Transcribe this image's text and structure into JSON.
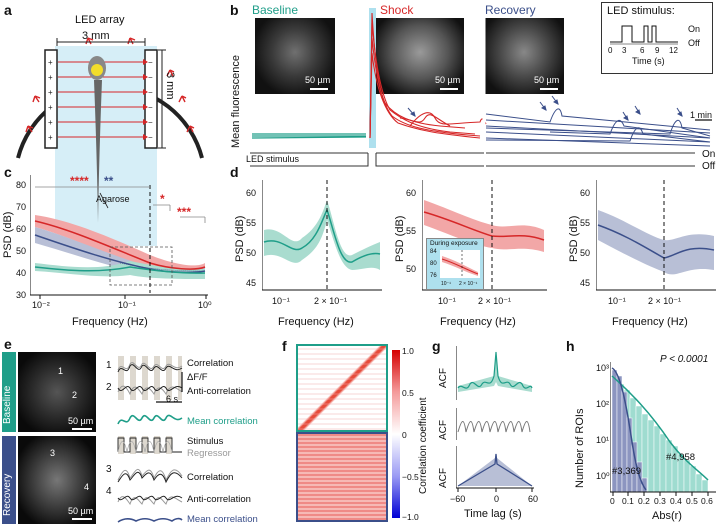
{
  "panels": {
    "a": {
      "label": "a",
      "led_array": "LED array",
      "width": "3 mm",
      "height": "3 mm",
      "agarose": "Agarose"
    },
    "b": {
      "label": "b",
      "phases": [
        {
          "name": "Baseline",
          "color": "#1f9e89"
        },
        {
          "name": "Shock",
          "color": "#d62728"
        },
        {
          "name": "Recovery",
          "color": "#3b4f8a"
        }
      ],
      "scalebar": "50 µm",
      "ylabel": "Mean fluorescence",
      "time_scale": "1 min",
      "led_stim_label": "LED stimulus",
      "on": "On",
      "off": "Off",
      "inset": {
        "title": "LED stimulus:",
        "on": "On",
        "off": "Off",
        "ticks": [
          "0",
          "3",
          "6",
          "9",
          "12"
        ],
        "xlabel": "Time (s)"
      }
    },
    "c": {
      "label": "c",
      "ylabel": "PSD (dB)",
      "xlabel": "Frequency (Hz)",
      "yticks": [
        "30",
        "40",
        "50",
        "60",
        "70",
        "80"
      ],
      "xticks": [
        "10⁻²",
        "10⁻¹",
        "10⁰"
      ],
      "sig_red": "****",
      "sig_blue": "**",
      "sig_star": "*",
      "sig_triple": "***"
    },
    "d": {
      "label": "d",
      "ylabel": "PSD (dB)",
      "xlabel": "Frequency (Hz)",
      "xticks": [
        "10⁻¹",
        "2 × 10⁻¹"
      ],
      "yticks_1": [
        "45",
        "50",
        "55",
        "60"
      ],
      "yticks_2": [
        "50",
        "55",
        "60"
      ],
      "yticks_3": [
        "45",
        "50",
        "55",
        "60"
      ],
      "inset_title": "During exposure",
      "inset_yticks": [
        "84",
        "80",
        "76"
      ],
      "inset_xticks": [
        "10⁻¹",
        "2 × 10⁻¹"
      ]
    },
    "e": {
      "label": "e",
      "baseline": "Baseline",
      "recovery": "Recovery",
      "scalebar": "50 µm",
      "time_scale": "6 s",
      "dff": "ΔF/F",
      "traces": [
        {
          "num": "1",
          "text": "Correlation"
        },
        {
          "num": "2",
          "text": "Anti-correlation"
        },
        {
          "num": "",
          "text": "Mean correlation"
        },
        {
          "num": "",
          "text": "Stimulus"
        },
        {
          "num": "",
          "text": "Regressor"
        },
        {
          "num": "3",
          "text": "Correlation"
        },
        {
          "num": "4",
          "text": "Anti-correlation"
        },
        {
          "num": "",
          "text": "Mean correlation"
        }
      ],
      "roi_labels": [
        "1",
        "2",
        "3",
        "4"
      ]
    },
    "f": {
      "label": "f",
      "colorbar_label": "Correlation coefficient",
      "ticks": [
        "1.0",
        "0.5",
        "0",
        "−0.5",
        "−1.0"
      ]
    },
    "g": {
      "label": "g",
      "ylabel": "ACF",
      "xlabel": "Time lag (s)",
      "xticks": [
        "−60",
        "0",
        "60"
      ]
    },
    "h": {
      "label": "h",
      "ylabel": "Number of ROIs",
      "xlabel": "Abs(r)",
      "pvalue": "P < 0.0001",
      "yticks": [
        "10³",
        "10²",
        "10¹",
        "10⁰"
      ],
      "xticks": [
        "0",
        "0.1",
        "0.2",
        "0.3",
        "0.4",
        "0.5",
        "0.6"
      ],
      "count_blue": "#3,369",
      "count_green": "#4,958"
    }
  },
  "colors": {
    "baseline": "#1f9e89",
    "shock": "#d62728",
    "recovery": "#3b4f8a",
    "stim_box": "#aee0ee"
  }
}
